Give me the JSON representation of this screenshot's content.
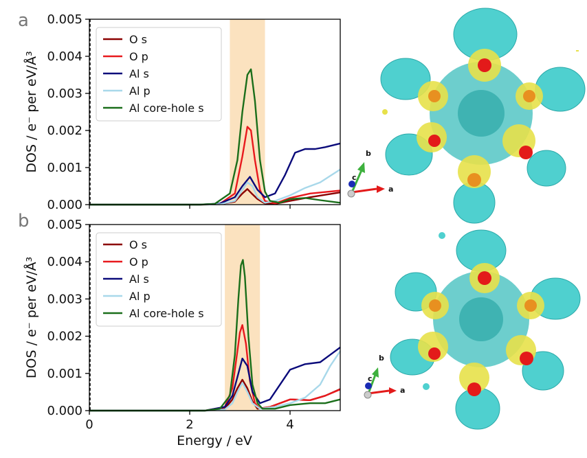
{
  "figure": {
    "panel_a_label": "a",
    "panel_b_label": "b"
  },
  "colors": {
    "O s": "#8b0000",
    "O p": "#e8191d",
    "Al s": "#0a0a7a",
    "Al p": "#a8d8ea",
    "Al core-hole s": "#1a6e1a",
    "band": "#fbe2bf"
  },
  "chart_data": [
    {
      "type": "line",
      "panel": "a",
      "xlabel": "",
      "ylabel": "DOS / e⁻ per eV/Å³",
      "xlim": [
        0,
        5
      ],
      "ylim": [
        0,
        0.005
      ],
      "xticks": [
        0,
        2,
        4
      ],
      "xtick_labels": [],
      "yticks": [
        0,
        0.001,
        0.002,
        0.003,
        0.004,
        0.005
      ],
      "ytick_labels": [
        "0.000",
        "0.001",
        "0.002",
        "0.003",
        "0.004",
        "0.005"
      ],
      "highlight_band": [
        2.8,
        3.5
      ],
      "legend": "top-left",
      "series": [
        {
          "name": "O s",
          "x": [
            0,
            2.2,
            2.6,
            2.9,
            3.05,
            3.15,
            3.25,
            3.35,
            3.5,
            3.7,
            4.0,
            4.4,
            5.0
          ],
          "y": [
            0,
            0,
            1e-05,
            8e-05,
            0.0003,
            0.00042,
            0.00028,
            0.00015,
            3e-05,
            2e-05,
            0.0001,
            0.0002,
            0.00033
          ]
        },
        {
          "name": "O p",
          "x": [
            0,
            2.2,
            2.6,
            2.9,
            3.05,
            3.15,
            3.22,
            3.3,
            3.4,
            3.5,
            3.7,
            4.0,
            4.4,
            5.0
          ],
          "y": [
            0,
            0,
            2e-05,
            0.0003,
            0.0013,
            0.0021,
            0.002,
            0.0012,
            0.0004,
            0.0001,
            3e-05,
            0.00018,
            0.0003,
            0.00038
          ]
        },
        {
          "name": "Al s",
          "x": [
            0,
            2.2,
            2.6,
            2.9,
            3.05,
            3.2,
            3.35,
            3.5,
            3.7,
            3.9,
            4.1,
            4.3,
            4.5,
            4.7,
            5.0
          ],
          "y": [
            0,
            0,
            3e-05,
            0.0002,
            0.0005,
            0.00075,
            0.0004,
            0.0002,
            0.0003,
            0.0008,
            0.0014,
            0.0015,
            0.0015,
            0.00155,
            0.00165
          ]
        },
        {
          "name": "Al p",
          "x": [
            0,
            2.2,
            2.6,
            2.9,
            3.05,
            3.15,
            3.25,
            3.35,
            3.5,
            3.7,
            4.0,
            4.3,
            4.6,
            5.0
          ],
          "y": [
            0,
            0,
            1e-05,
            0.0001,
            0.0004,
            0.0006,
            0.0005,
            0.0002,
            5e-05,
            0.0001,
            0.00025,
            0.00045,
            0.0006,
            0.00095
          ]
        },
        {
          "name": "Al core-hole s",
          "x": [
            0,
            2.2,
            2.5,
            2.8,
            2.95,
            3.05,
            3.15,
            3.22,
            3.3,
            3.4,
            3.5,
            3.6,
            3.8,
            4.0,
            4.3,
            4.6,
            5.0
          ],
          "y": [
            0,
            0,
            2e-05,
            0.0003,
            0.0012,
            0.0025,
            0.0035,
            0.00365,
            0.0028,
            0.0012,
            0.00035,
            0.0001,
            5e-05,
            0.00015,
            0.00018,
            0.00012,
            5e-05
          ]
        }
      ]
    },
    {
      "type": "line",
      "panel": "b",
      "xlabel": "Energy / eV",
      "ylabel": "DOS / e⁻ per eV/Å³",
      "xlim": [
        0,
        5
      ],
      "ylim": [
        0,
        0.005
      ],
      "xticks": [
        0,
        2,
        4
      ],
      "xtick_labels": [
        "0",
        "2",
        "4"
      ],
      "yticks": [
        0,
        0.001,
        0.002,
        0.003,
        0.004,
        0.005
      ],
      "ytick_labels": [
        "0.000",
        "0.001",
        "0.002",
        "0.003",
        "0.004",
        "0.005"
      ],
      "highlight_band": [
        2.7,
        3.4
      ],
      "legend": "top-left",
      "series": [
        {
          "name": "O s",
          "x": [
            0,
            2.3,
            2.7,
            2.85,
            2.95,
            3.05,
            3.15,
            3.25,
            3.35,
            3.6,
            4.0,
            4.4,
            4.7,
            5.0
          ],
          "y": [
            0,
            0,
            5e-05,
            0.0003,
            0.0006,
            0.00083,
            0.0006,
            0.00025,
            5e-05,
            0.0001,
            0.0003,
            0.00028,
            0.0004,
            0.00058
          ]
        },
        {
          "name": "O p",
          "x": [
            0,
            2.3,
            2.7,
            2.85,
            2.95,
            3.0,
            3.05,
            3.12,
            3.2,
            3.3,
            3.4,
            3.6,
            4.0,
            4.4,
            4.7,
            5.0
          ],
          "y": [
            0,
            0,
            0.0001,
            0.0006,
            0.0016,
            0.0021,
            0.0023,
            0.0018,
            0.0008,
            0.0002,
            5e-05,
            0.0001,
            0.0003,
            0.00028,
            0.0004,
            0.00057
          ]
        },
        {
          "name": "Al s",
          "x": [
            0,
            2.3,
            2.7,
            2.85,
            2.95,
            3.05,
            3.15,
            3.25,
            3.4,
            3.6,
            3.8,
            4.0,
            4.3,
            4.6,
            4.8,
            5.0
          ],
          "y": [
            0,
            0,
            0.0001,
            0.0004,
            0.0009,
            0.0014,
            0.0012,
            0.0005,
            0.0002,
            0.0003,
            0.0007,
            0.0011,
            0.00125,
            0.0013,
            0.0015,
            0.0017
          ]
        },
        {
          "name": "Al p",
          "x": [
            0,
            2.3,
            2.7,
            2.85,
            2.95,
            3.05,
            3.15,
            3.25,
            3.4,
            3.7,
            4.0,
            4.3,
            4.6,
            4.8,
            5.0
          ],
          "y": [
            0,
            0,
            3e-05,
            0.0002,
            0.0005,
            0.00075,
            0.0005,
            0.0002,
            5e-05,
            0.0001,
            0.0002,
            0.00035,
            0.0007,
            0.0012,
            0.0016
          ]
        },
        {
          "name": "Al core-hole s",
          "x": [
            0,
            2.3,
            2.6,
            2.8,
            2.9,
            2.97,
            3.02,
            3.06,
            3.1,
            3.17,
            3.25,
            3.35,
            3.45,
            3.7,
            4.0,
            4.4,
            4.7,
            5.0
          ],
          "y": [
            0,
            0,
            5e-05,
            0.0004,
            0.0015,
            0.003,
            0.0039,
            0.00405,
            0.0036,
            0.002,
            0.0007,
            0.0002,
            5e-05,
            5e-05,
            0.00015,
            0.0002,
            0.0002,
            0.0003
          ]
        }
      ]
    }
  ],
  "structure_a": {
    "axis_a": "a",
    "axis_b": "b",
    "axis_c": "c"
  },
  "structure_b": {
    "axis_a": "a",
    "axis_b": "b",
    "axis_c": "c"
  }
}
